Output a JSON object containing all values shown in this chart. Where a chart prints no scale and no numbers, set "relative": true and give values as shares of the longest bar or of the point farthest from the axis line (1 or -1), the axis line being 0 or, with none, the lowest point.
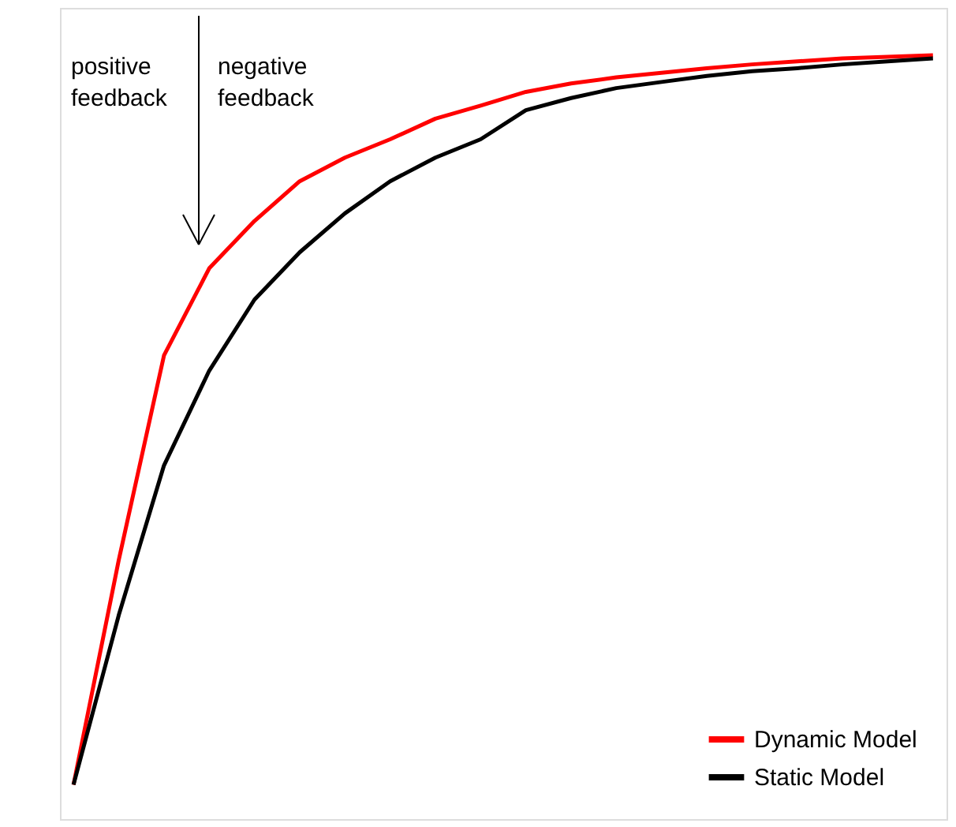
{
  "chart_data": {
    "type": "line",
    "relative": true,
    "legend": "bottom right",
    "grid": false,
    "marker": "none",
    "line_style": "solid",
    "categories": [
      null,
      null,
      null,
      null,
      null,
      null,
      null,
      null,
      null,
      null,
      null,
      null,
      null,
      null,
      null,
      null,
      null,
      null,
      null,
      null
    ],
    "series": [
      {
        "name": "Dynamic Model",
        "color": "#ff0000",
        "values": [
          0.045,
          0.339,
          0.607,
          0.721,
          0.783,
          0.835,
          0.866,
          0.89,
          0.917,
          0.934,
          0.952,
          0.963,
          0.971,
          0.977,
          0.983,
          0.988,
          0.992,
          0.996,
          0.998,
          1
        ]
      },
      {
        "name": "Static Model",
        "color": "#000000",
        "values": [
          0.045,
          0.267,
          0.463,
          0.587,
          0.68,
          0.742,
          0.793,
          0.835,
          0.866,
          0.89,
          0.928,
          0.944,
          0.957,
          0.965,
          0.973,
          0.979,
          0.983,
          0.988,
          0.992,
          0.996
        ]
      }
    ],
    "annotations": [
      "positive\nfeedback",
      "negative\nfeedback"
    ]
  }
}
